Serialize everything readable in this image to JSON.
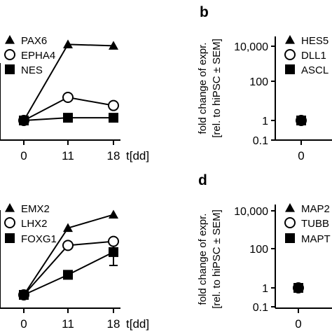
{
  "figure": {
    "x_unit_label": "t[dd]"
  },
  "chart_data": [
    {
      "panel": "",
      "type": "line",
      "x": [
        "0",
        "11",
        "18"
      ],
      "ylim": [
        0.9,
        8
      ],
      "series": [
        {
          "name": "PAX6",
          "marker": "triangle",
          "values": [
            1,
            6.6,
            6.5
          ]
        },
        {
          "name": "EPHA4",
          "marker": "circle-open",
          "values": [
            1,
            2.7,
            2.1
          ]
        },
        {
          "name": "NES",
          "marker": "square",
          "values": [
            1,
            1.2,
            1.2
          ]
        }
      ]
    },
    {
      "panel": "b",
      "type": "line",
      "ylabel_line1": "fold change of expr.",
      "ylabel_line2": "[rel. to hiPSC ± SEM]",
      "y_scale": "log",
      "yticks": [
        "10,000",
        "100",
        "1",
        "0.1"
      ],
      "x": [
        "0"
      ],
      "series": [
        {
          "name": "HES5",
          "marker": "triangle",
          "values": [
            1
          ]
        },
        {
          "name": "DLL1",
          "marker": "circle-open",
          "values": [
            1
          ]
        },
        {
          "name": "ASCL",
          "marker": "square",
          "values": [
            1
          ]
        }
      ]
    },
    {
      "panel": "",
      "type": "line",
      "x": [
        "0",
        "11",
        "18"
      ],
      "ylim": [
        0.9,
        8
      ],
      "series": [
        {
          "name": "EMX2",
          "marker": "triangle",
          "values": [
            1,
            6.0,
            7.0
          ]
        },
        {
          "name": "LHX2",
          "marker": "circle-open",
          "values": [
            1,
            4.7,
            5.0
          ]
        },
        {
          "name": "FOXG1",
          "marker": "square",
          "values": [
            1,
            2.5,
            4.2
          ],
          "errors": [
            0,
            0,
            1
          ]
        }
      ]
    },
    {
      "panel": "d",
      "type": "line",
      "ylabel_line1": "fold change of expr.",
      "ylabel_line2": "[rel. to hiPSC ± SEM]",
      "y_scale": "log",
      "yticks": [
        "10,000",
        "100",
        "1",
        "0.1"
      ],
      "x": [
        "0"
      ],
      "series": [
        {
          "name": "MAP2",
          "marker": "triangle",
          "values": [
            1
          ]
        },
        {
          "name": "TUBB",
          "marker": "circle-open",
          "values": [
            1
          ]
        },
        {
          "name": "MAPT",
          "marker": "square",
          "values": [
            1
          ]
        }
      ]
    }
  ]
}
